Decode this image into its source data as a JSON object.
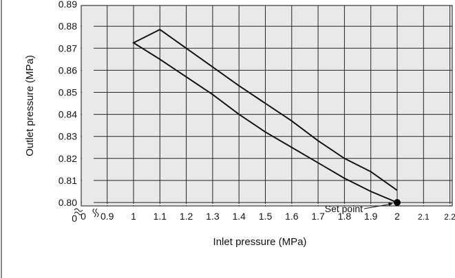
{
  "chart_data": {
    "type": "line",
    "xlabel": "Inlet pressure (MPa)",
    "ylabel": "Outlet pressure (MPa)",
    "x_ticks": [
      "0",
      "0.9",
      "1",
      "1.1",
      "1.2",
      "1.3",
      "1.4",
      "1.5",
      "1.6",
      "1.7",
      "1.8",
      "1.9",
      "2",
      "2.1",
      "2.2"
    ],
    "y_ticks": [
      "0",
      "0.80",
      "0.81",
      "0.82",
      "0.83",
      "0.84",
      "0.85",
      "0.86",
      "0.87",
      "0.88",
      "0.89"
    ],
    "xlim": [
      0.8,
      2.2
    ],
    "ylim": [
      0.795,
      0.89
    ],
    "axis_breaks": true,
    "grid": true,
    "series": [
      {
        "values_xy": [
          [
            2.0,
            0.8
          ],
          [
            1.9,
            0.805
          ],
          [
            1.8,
            0.811
          ],
          [
            1.7,
            0.818
          ],
          [
            1.6,
            0.825
          ],
          [
            1.5,
            0.832
          ],
          [
            1.4,
            0.84
          ],
          [
            1.3,
            0.849
          ],
          [
            1.2,
            0.857
          ],
          [
            1.1,
            0.865
          ],
          [
            1.0,
            0.8725
          ],
          [
            1.1,
            0.8785
          ],
          [
            1.2,
            0.87
          ],
          [
            1.3,
            0.8615
          ],
          [
            1.4,
            0.853
          ],
          [
            1.5,
            0.845
          ],
          [
            1.6,
            0.837
          ],
          [
            1.7,
            0.828
          ],
          [
            1.8,
            0.82
          ],
          [
            1.9,
            0.814
          ],
          [
            2.0,
            0.8055
          ]
        ]
      }
    ],
    "annotations": [
      {
        "text": "Set point",
        "x": 2.0,
        "y": 0.8
      }
    ],
    "colors": {
      "grid": "#222222",
      "plot_background": "#e9e9e9",
      "line": "#111111"
    }
  }
}
